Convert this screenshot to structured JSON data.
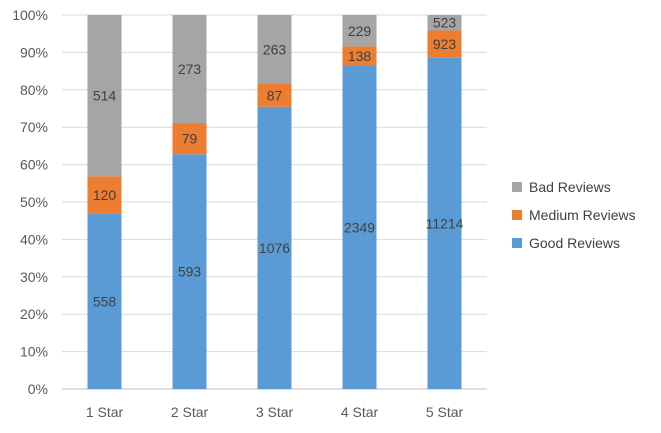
{
  "chart_data": {
    "type": "bar",
    "stacked": "percent",
    "categories": [
      "1 Star",
      "2 Star",
      "3 Star",
      "4 Star",
      "5 Star"
    ],
    "series": [
      {
        "name": "Good Reviews",
        "color": "#5B9BD5",
        "values": [
          558,
          593,
          1076,
          2349,
          11214
        ]
      },
      {
        "name": "Medium Reviews",
        "color": "#ED7D31",
        "values": [
          120,
          79,
          87,
          138,
          923
        ]
      },
      {
        "name": "Bad Reviews",
        "color": "#A5A5A5",
        "values": [
          514,
          273,
          263,
          229,
          523
        ]
      }
    ],
    "y_ticks": [
      "0%",
      "10%",
      "20%",
      "30%",
      "40%",
      "50%",
      "60%",
      "70%",
      "80%",
      "90%",
      "100%"
    ],
    "ylim": [
      0,
      1
    ],
    "grid": true,
    "legend_position": "right",
    "title": "",
    "xlabel": "",
    "ylabel": ""
  }
}
